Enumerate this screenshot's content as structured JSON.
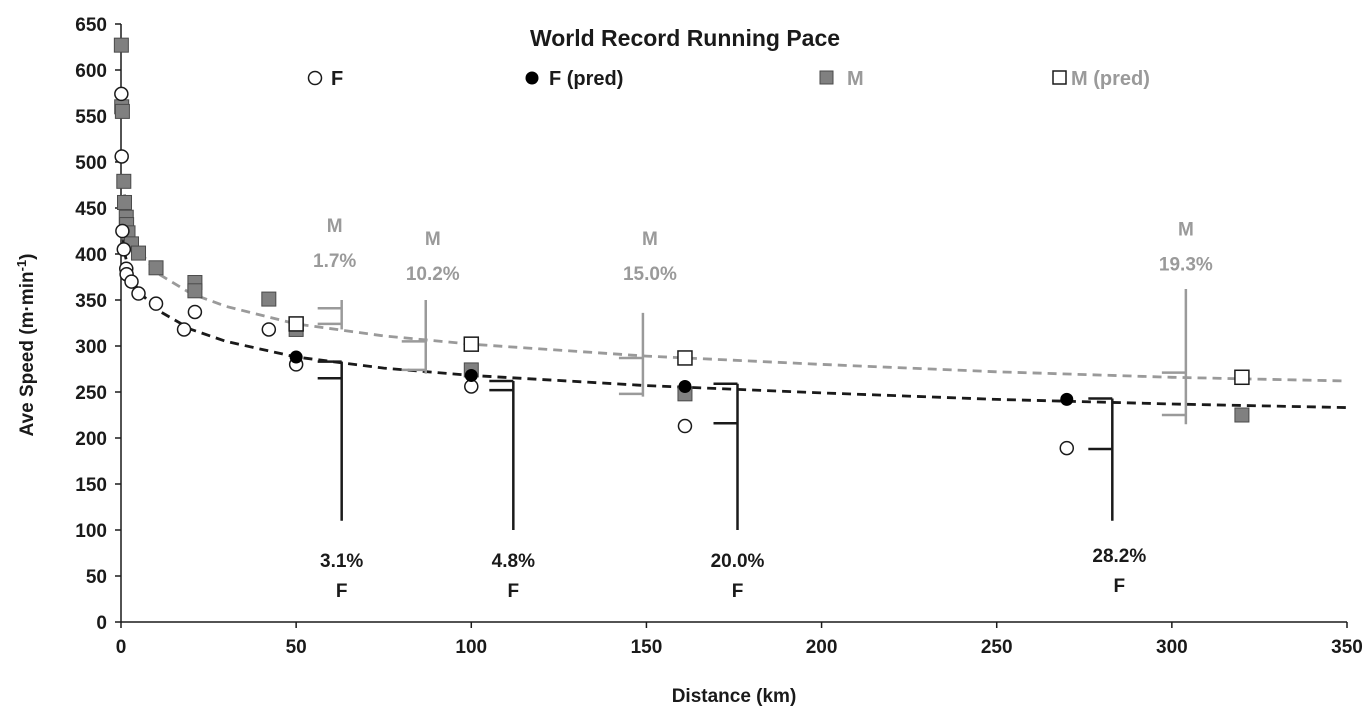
{
  "chart_data": {
    "type": "scatter",
    "title": "World Record Running Pace",
    "xlabel": "Distance (km)",
    "ylabel": "Ave Speed (m·min",
    "ylabel_sup": "-1",
    "ylabel_close": ")",
    "xlim": [
      0,
      350
    ],
    "ylim": [
      0,
      650
    ],
    "x_ticks": [
      0,
      50,
      100,
      150,
      200,
      250,
      300,
      350
    ],
    "y_ticks": [
      0,
      50,
      100,
      150,
      200,
      250,
      300,
      350,
      400,
      450,
      500,
      550,
      600,
      650
    ],
    "grid": false,
    "legend_position": "top",
    "colors": {
      "female": "#1a1a1a",
      "male": "#9a9a9a",
      "male_marker": "#808080"
    },
    "series": [
      {
        "name": "F",
        "marker": "open-circle",
        "points": [
          {
            "x": 0.1,
            "y": 574
          },
          {
            "x": 0.2,
            "y": 506
          },
          {
            "x": 0.4,
            "y": 425
          },
          {
            "x": 0.8,
            "y": 405
          },
          {
            "x": 1.5,
            "y": 384
          },
          {
            "x": 1.6,
            "y": 378
          },
          {
            "x": 3,
            "y": 370
          },
          {
            "x": 5,
            "y": 357
          },
          {
            "x": 10,
            "y": 346
          },
          {
            "x": 18,
            "y": 318
          },
          {
            "x": 21.1,
            "y": 337
          },
          {
            "x": 42.2,
            "y": 318
          },
          {
            "x": 50,
            "y": 280
          },
          {
            "x": 100,
            "y": 256
          },
          {
            "x": 161,
            "y": 213
          },
          {
            "x": 270,
            "y": 189
          }
        ]
      },
      {
        "name": "F (pred)",
        "marker": "filled-circle",
        "points": [
          {
            "x": 50,
            "y": 288
          },
          {
            "x": 100,
            "y": 268
          },
          {
            "x": 161,
            "y": 256
          },
          {
            "x": 270,
            "y": 242
          }
        ]
      },
      {
        "name": "M",
        "marker": "filled-square",
        "points": [
          {
            "x": 0.1,
            "y": 627
          },
          {
            "x": 0.2,
            "y": 560
          },
          {
            "x": 0.4,
            "y": 555
          },
          {
            "x": 0.8,
            "y": 479
          },
          {
            "x": 1,
            "y": 456
          },
          {
            "x": 1.5,
            "y": 440
          },
          {
            "x": 1.6,
            "y": 432
          },
          {
            "x": 2,
            "y": 423
          },
          {
            "x": 3,
            "y": 411
          },
          {
            "x": 5,
            "y": 401
          },
          {
            "x": 10,
            "y": 385
          },
          {
            "x": 21.1,
            "y": 369
          },
          {
            "x": 21.1,
            "y": 360
          },
          {
            "x": 42.2,
            "y": 351
          },
          {
            "x": 50,
            "y": 318
          },
          {
            "x": 100,
            "y": 274
          },
          {
            "x": 161,
            "y": 248
          },
          {
            "x": 320,
            "y": 225
          }
        ]
      },
      {
        "name": "M (pred)",
        "marker": "open-square",
        "points": [
          {
            "x": 50,
            "y": 324
          },
          {
            "x": 100,
            "y": 302
          },
          {
            "x": 161,
            "y": 287
          },
          {
            "x": 320,
            "y": 266
          }
        ]
      }
    ],
    "trendlines": [
      {
        "series": "M",
        "style": "dashed",
        "color": "#9a9a9a",
        "points": [
          [
            1,
            465
          ],
          [
            2,
            440
          ],
          [
            3,
            425
          ],
          [
            5,
            405
          ],
          [
            10,
            380
          ],
          [
            20,
            357
          ],
          [
            30,
            343
          ],
          [
            50,
            324
          ],
          [
            75,
            311
          ],
          [
            100,
            302
          ],
          [
            150,
            289
          ],
          [
            200,
            280
          ],
          [
            250,
            272
          ],
          [
            300,
            266
          ],
          [
            350,
            262
          ]
        ]
      },
      {
        "series": "F",
        "style": "dashed",
        "color": "#1a1a1a",
        "points": [
          [
            0.5,
            420
          ],
          [
            1,
            402
          ],
          [
            2,
            385
          ],
          [
            3,
            375
          ],
          [
            5,
            360
          ],
          [
            10,
            340
          ],
          [
            20,
            318
          ],
          [
            30,
            305
          ],
          [
            50,
            288
          ],
          [
            75,
            276
          ],
          [
            100,
            268
          ],
          [
            150,
            257
          ],
          [
            200,
            249
          ],
          [
            250,
            242
          ],
          [
            300,
            237
          ],
          [
            350,
            233
          ]
        ]
      }
    ],
    "annotations": {
      "male": [
        {
          "sex": "M",
          "value": "1.7%",
          "x": 63,
          "y_range": [
            318,
            350
          ],
          "ticks": [
            324,
            341
          ],
          "label_x": 61,
          "label_y": 424
        },
        {
          "sex": "M",
          "value": "10.2%",
          "x": 87,
          "y_range": [
            270,
            350
          ],
          "ticks": [
            274,
            305
          ],
          "label_x": 89,
          "label_y": 410
        },
        {
          "sex": "M",
          "value": "15.0%",
          "x": 149,
          "y_range": [
            245,
            336
          ],
          "ticks": [
            248,
            287
          ],
          "label_x": 151,
          "label_y": 410
        },
        {
          "sex": "M",
          "value": "19.3%",
          "x": 304,
          "y_range": [
            215,
            362
          ],
          "ticks": [
            225,
            271
          ],
          "label_x": 304,
          "label_y": 420
        }
      ],
      "female": [
        {
          "sex": "F",
          "value": "3.1%",
          "x": 63,
          "y_range": [
            110,
            283
          ],
          "ticks": [
            265,
            283
          ],
          "label_x": 63,
          "label_y": 60
        },
        {
          "sex": "F",
          "value": "4.8%",
          "x": 112,
          "y_range": [
            100,
            262
          ],
          "ticks": [
            252,
            262
          ],
          "label_x": 112,
          "label_y": 60
        },
        {
          "sex": "F",
          "value": "20.0%",
          "x": 176,
          "y_range": [
            100,
            259
          ],
          "ticks": [
            216,
            259
          ],
          "label_x": 176,
          "label_y": 60
        },
        {
          "sex": "F",
          "value": "28.2%",
          "x": 283,
          "y_range": [
            110,
            243
          ],
          "ticks": [
            188,
            243
          ],
          "label_x": 285,
          "label_y": 65
        }
      ]
    }
  }
}
